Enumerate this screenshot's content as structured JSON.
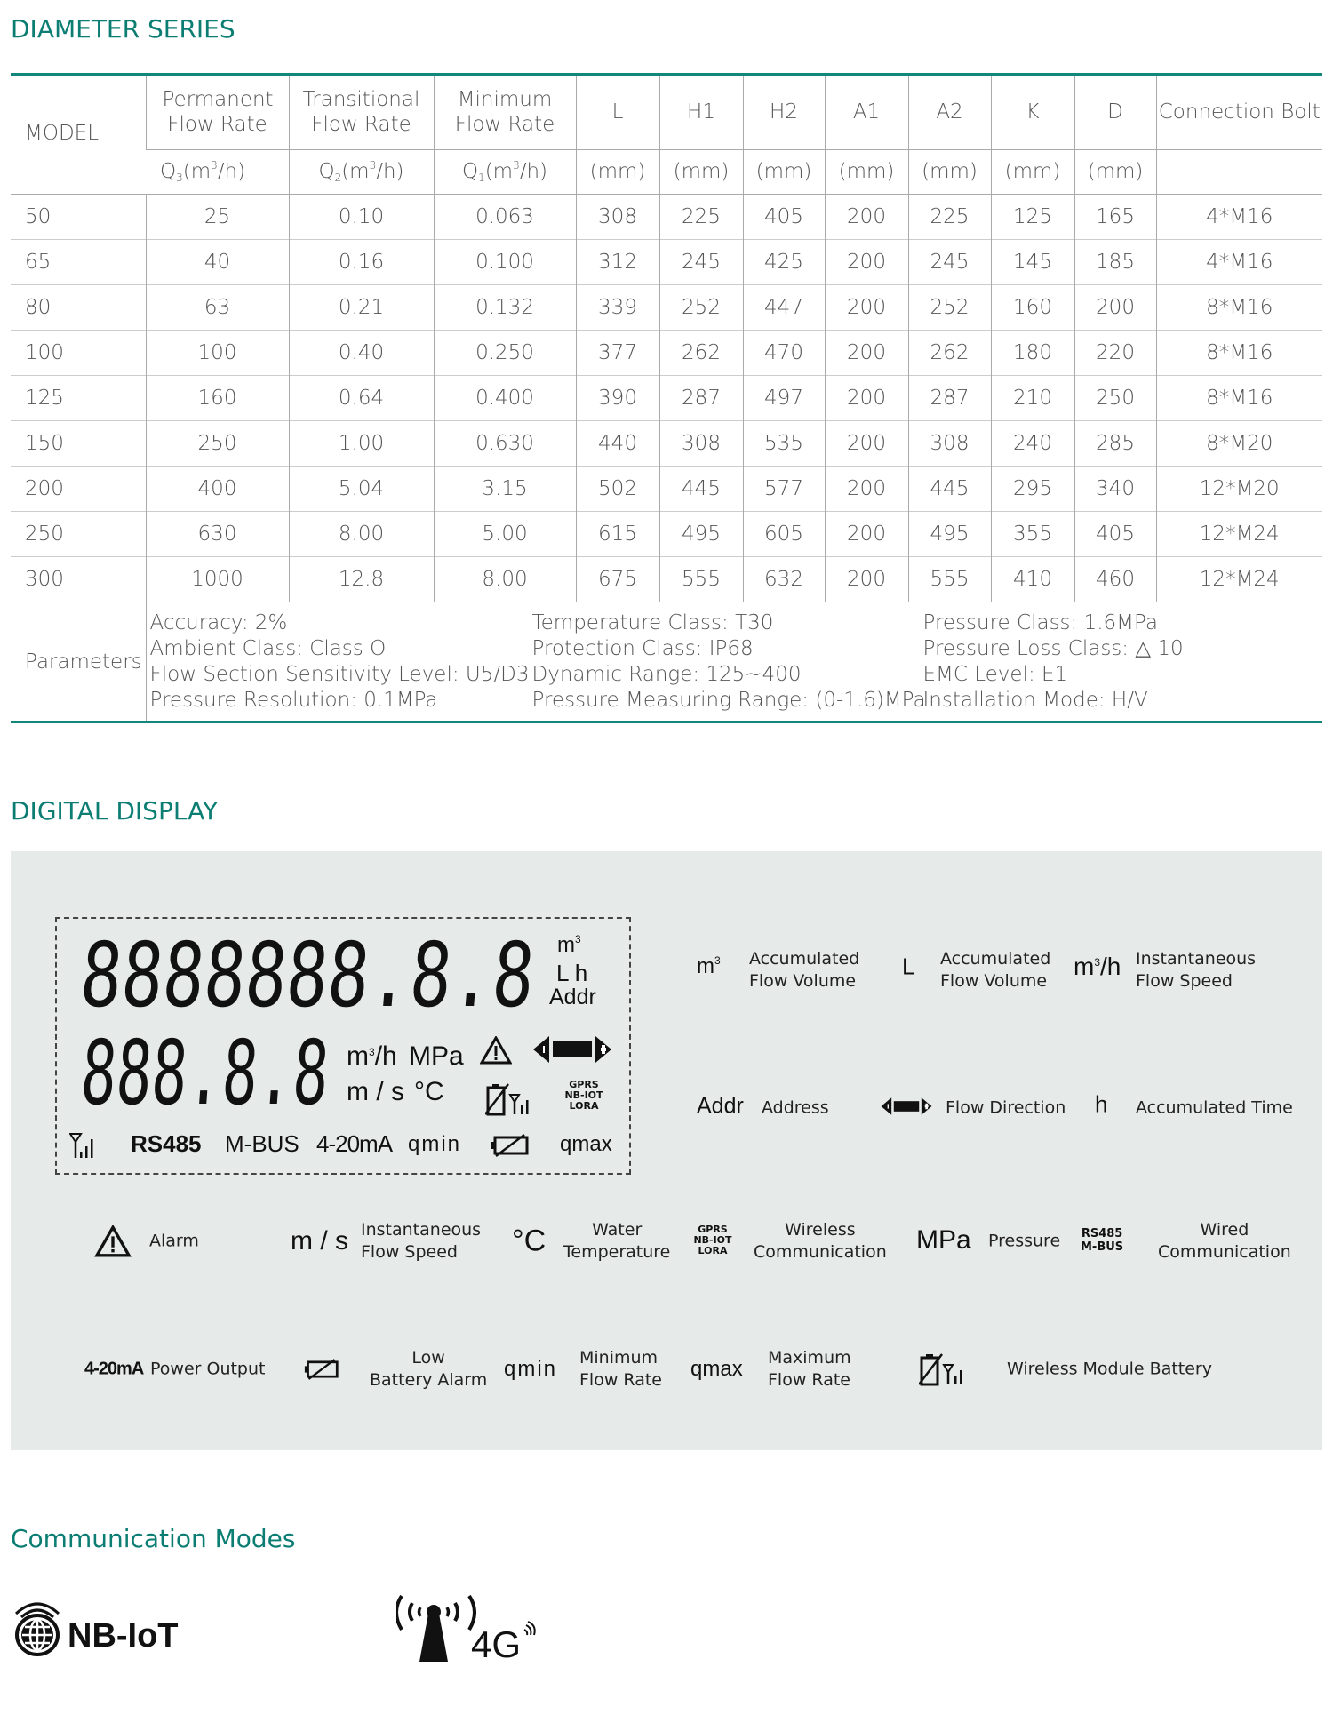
{
  "diameter": {
    "title": "DIAMETER SERIES",
    "headers": {
      "model": "MODEL",
      "permanent": "Permanent Flow Rate",
      "transitional": "Transitional Flow Rate",
      "minimum": "Minimum Flow Rate",
      "L": "L",
      "H1": "H1",
      "H2": "H2",
      "A1": "A1",
      "A2": "A2",
      "K": "K",
      "D": "D",
      "bolt": "Connection Bolt"
    },
    "units": {
      "q3": "Q",
      "q3sub": "3",
      "q2": "Q",
      "q2sub": "2",
      "q1": "Q",
      "q1sub": "1",
      "flow": "(m",
      "flowsup": "3",
      "flowend": "/h)",
      "mm": "(mm)"
    },
    "rows": [
      [
        "50",
        "25",
        "0.10",
        "0.063",
        "308",
        "225",
        "405",
        "200",
        "225",
        "125",
        "165",
        "4*M16"
      ],
      [
        "65",
        "40",
        "0.16",
        "0.100",
        "312",
        "245",
        "425",
        "200",
        "245",
        "145",
        "185",
        "4*M16"
      ],
      [
        "80",
        "63",
        "0.21",
        "0.132",
        "339",
        "252",
        "447",
        "200",
        "252",
        "160",
        "200",
        "8*M16"
      ],
      [
        "100",
        "100",
        "0.40",
        "0.250",
        "377",
        "262",
        "470",
        "200",
        "262",
        "180",
        "220",
        "8*M16"
      ],
      [
        "125",
        "160",
        "0.64",
        "0.400",
        "390",
        "287",
        "497",
        "200",
        "287",
        "210",
        "250",
        "8*M16"
      ],
      [
        "150",
        "250",
        "1.00",
        "0.630",
        "440",
        "308",
        "535",
        "200",
        "308",
        "240",
        "285",
        "8*M20"
      ],
      [
        "200",
        "400",
        "5.04",
        "3.15",
        "502",
        "445",
        "577",
        "200",
        "445",
        "295",
        "340",
        "12*M20"
      ],
      [
        "250",
        "630",
        "8.00",
        "5.00",
        "615",
        "495",
        "605",
        "200",
        "495",
        "355",
        "405",
        "12*M24"
      ],
      [
        "300",
        "1000",
        "12.8",
        "8.00",
        "675",
        "555",
        "632",
        "200",
        "555",
        "410",
        "460",
        "12*M24"
      ]
    ],
    "parameters_label": "Parameters",
    "parameters": [
      [
        "Accuracy: 2%",
        "Ambient Class: Class O",
        "Flow Section Sensitivity Level: U5/D3",
        "Pressure Resolution: 0.1MPa"
      ],
      [
        "Temperature Class: T30",
        "Protection Class: IP68",
        "Dynamic Range: 125~400",
        "Pressure Measuring Range: (0-1.6)MPa"
      ],
      [
        "Pressure Class: 1.6MPa",
        "Pressure Loss Class: △ 10",
        "EMC Level: E1",
        "Installation Mode: H/V"
      ]
    ]
  },
  "digital": {
    "title": "DIGITAL DISPLAY",
    "lcd": {
      "top_digits": "8888888.8.8",
      "bottom_digits": "888.8.8",
      "unit_m3": "m",
      "sup3": "3",
      "unit_lh": "L h",
      "unit_addr": "Addr",
      "unit_m3h": "m",
      "unit_m3h_end": "/h",
      "unit_mpa": "MPa",
      "unit_ms": "m / s",
      "unit_c": "°C",
      "gprs": "GPRS",
      "nbiot": "NB-IOT",
      "lora": "LORA",
      "rs485": "RS485",
      "mbus": "M-BUS",
      "ma": "4-20mA",
      "qmin": "qmin",
      "qmax": "qmax"
    },
    "legend": {
      "m3": "m",
      "m3_label1": "Accumulated",
      "m3_label2": "Flow Volume",
      "L": "L",
      "L_label1": "Accumulated",
      "L_label2": "Flow Volume",
      "m3h": "m",
      "m3h_end": "/h",
      "m3h_label1": "Instantaneous",
      "m3h_label2": "Flow Speed",
      "addr": "Addr",
      "addr_label": "Address",
      "dir_label": "Flow Direction",
      "h": "h",
      "h_label": "Accumulated Time",
      "alarm_label": "Alarm",
      "ms": "m / s",
      "ms_label1": "Instantaneous",
      "ms_label2": "Flow Speed",
      "c": "°C",
      "c_label1": "Water",
      "c_label2": "Temperature",
      "gprs": "GPRS",
      "nbiot": "NB-IOT",
      "lora": "LORA",
      "wireless_label1": "Wireless",
      "wireless_label2": "Communication",
      "mpa": "MPa",
      "mpa_label": "Pressure",
      "rs485": "RS485",
      "mbus": "M-BUS",
      "wired_label1": "Wired",
      "wired_label2": "Communication",
      "ma": "4-20mA",
      "ma_label": "Power Output",
      "lowbat_label1": "Low",
      "lowbat_label2": "Battery Alarm",
      "qmin": "qmin",
      "qmin_label1": "Minimum",
      "qmin_label2": "Flow Rate",
      "qmax": "qmax",
      "qmax_label1": "Maximum",
      "qmax_label2": "Flow Rate",
      "wbat_label": "Wireless Module Battery"
    }
  },
  "communication": {
    "title": "Communication Modes",
    "nbiot": "NB-IoT",
    "fourg": "4G"
  },
  "colors": {
    "accent": "#0b7d73",
    "panel": "#e6ebea"
  }
}
